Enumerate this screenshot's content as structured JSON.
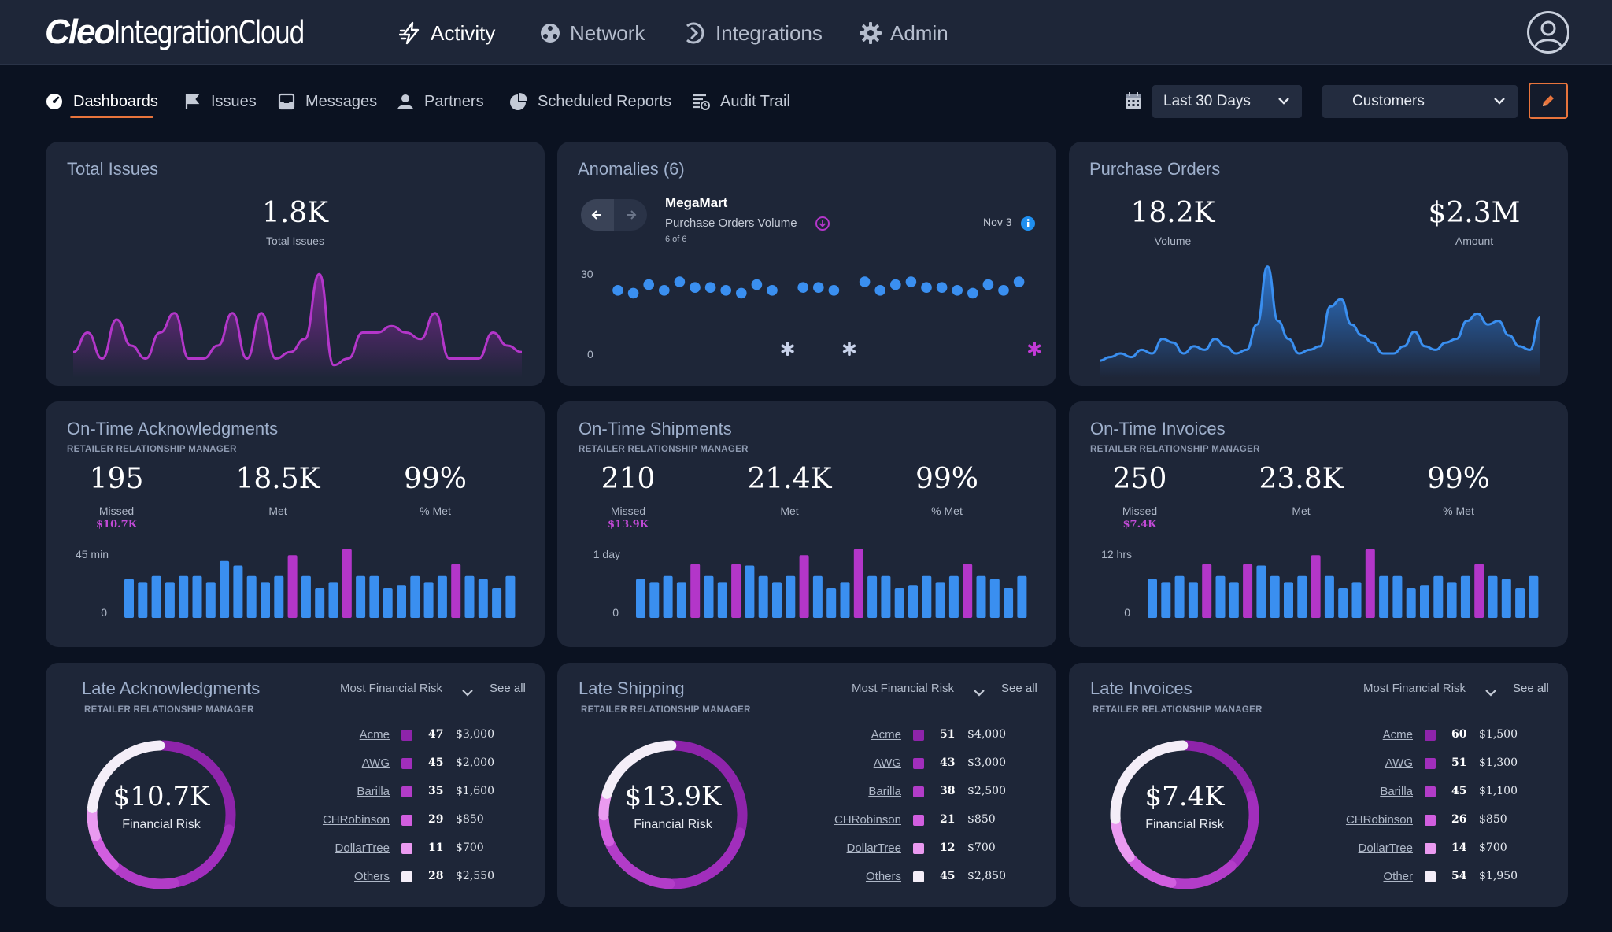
{
  "app": {
    "logo_bold": "Cleo",
    "logo_rest": "IntegrationCloud"
  },
  "main_nav": [
    {
      "label": "Activity",
      "icon": "activity-bolt-icon",
      "active": true
    },
    {
      "label": "Network",
      "icon": "network-icon"
    },
    {
      "label": "Integrations",
      "icon": "integrations-icon"
    },
    {
      "label": "Admin",
      "icon": "gear-icon"
    }
  ],
  "tabs": [
    {
      "label": "Dashboards",
      "icon": "gauge-icon",
      "active": true
    },
    {
      "label": "Issues",
      "icon": "flag-icon"
    },
    {
      "label": "Messages",
      "icon": "inbox-icon"
    },
    {
      "label": "Partners",
      "icon": "partners-icon"
    },
    {
      "label": "Scheduled Reports",
      "icon": "pie-icon"
    },
    {
      "label": "Audit Trail",
      "icon": "audit-icon"
    }
  ],
  "filters": {
    "date_range": "Last 30 Days",
    "entity": "Customers"
  },
  "colors": {
    "accent": "#e8743c",
    "blue": "#3a8ff0",
    "magenta": "#b336c9",
    "bg": "#0b1221",
    "card": "#1e2638"
  },
  "total_issues": {
    "title": "Total Issues",
    "value": "1.8K",
    "label": "Total Issues",
    "chart_data": {
      "type": "area",
      "values": [
        3,
        6,
        2,
        8,
        4,
        2,
        6,
        9,
        2,
        2,
        4,
        9,
        2,
        9,
        2,
        3,
        5,
        15,
        1,
        2,
        6,
        6,
        7,
        6,
        5,
        9,
        2,
        2,
        2,
        6,
        4,
        3
      ]
    }
  },
  "anomalies": {
    "title": "Anomalies (6)",
    "partner": "MegaMart",
    "metric": "Purchase Orders Volume",
    "count": "6 of 6",
    "date": "Nov 3",
    "y_max_label": "30",
    "y_min_label": "0",
    "chart_data": {
      "type": "scatter",
      "points": [
        22,
        21,
        24,
        22,
        25,
        23,
        23,
        22,
        21,
        24,
        22,
        null,
        23,
        23,
        22,
        null,
        25,
        22,
        24,
        25,
        23,
        23,
        22,
        21,
        24,
        22,
        25,
        23
      ],
      "anomaly_indices": [
        11,
        15,
        27
      ]
    }
  },
  "purchase_orders": {
    "title": "Purchase Orders",
    "volume": "18.2K",
    "volume_label": "Volume",
    "amount": "$2.3M",
    "amount_label": "Amount",
    "chart_data": {
      "type": "area",
      "values": [
        3,
        4,
        5,
        4,
        6,
        5,
        9,
        8,
        5,
        7,
        6,
        9,
        7,
        5,
        6,
        13,
        29,
        14,
        9,
        5,
        6,
        7,
        18,
        20,
        13,
        10,
        8,
        5,
        5,
        7,
        11,
        7,
        6,
        8,
        9,
        14,
        16,
        13,
        14,
        10,
        7,
        6,
        15
      ]
    }
  },
  "kpis": [
    {
      "title": "On-Time Acknowledgments",
      "subtitle": "RETAILER RELATIONSHIP MANAGER",
      "missed": "195",
      "missed_label": "Missed",
      "missed_money": "$10.7K",
      "met": "18.5K",
      "met_label": "Met",
      "pct": "99%",
      "pct_label": "% Met",
      "y_max_label": "45 min",
      "y_min_label": "0",
      "chart_data": {
        "type": "bar",
        "values": [
          26,
          24,
          28,
          24,
          28,
          28,
          24,
          38,
          35,
          28,
          24,
          28,
          42,
          28,
          20,
          24,
          46,
          28,
          28,
          20,
          22,
          28,
          24,
          28,
          36,
          28,
          26,
          20,
          28
        ],
        "highlight": [
          12,
          16,
          24
        ]
      }
    },
    {
      "title": "On-Time Shipments",
      "subtitle": "RETAILER RELATIONSHIP MANAGER",
      "missed": "210",
      "missed_label": "Missed",
      "missed_money": "$13.9K",
      "met": "21.4K",
      "met_label": "Met",
      "pct": "99%",
      "pct_label": "% Met",
      "y_max_label": "1 day",
      "y_min_label": "0",
      "chart_data": {
        "type": "bar",
        "values": [
          26,
          24,
          28,
          24,
          36,
          28,
          24,
          36,
          35,
          28,
          24,
          28,
          42,
          28,
          20,
          24,
          46,
          28,
          28,
          20,
          22,
          28,
          24,
          28,
          36,
          28,
          26,
          20,
          28
        ],
        "highlight": [
          4,
          7,
          12,
          16,
          24
        ]
      }
    },
    {
      "title": "On-Time Invoices",
      "subtitle": "RETAILER RELATIONSHIP MANAGER",
      "missed": "250",
      "missed_label": "Missed",
      "missed_money": "$7.4K",
      "met": "23.8K",
      "met_label": "Met",
      "pct": "99%",
      "pct_label": "% Met",
      "y_max_label": "12 hrs",
      "y_min_label": "0",
      "chart_data": {
        "type": "bar",
        "values": [
          26,
          24,
          28,
          24,
          36,
          28,
          24,
          36,
          35,
          28,
          24,
          28,
          42,
          28,
          20,
          24,
          46,
          28,
          28,
          20,
          22,
          28,
          24,
          28,
          36,
          28,
          26,
          20,
          28
        ],
        "highlight": [
          4,
          7,
          12,
          16,
          24
        ]
      }
    }
  ],
  "late": [
    {
      "title": "Late Acknowledgments",
      "subtitle": "RETAILER RELATIONSHIP MANAGER",
      "sort": "Most Financial Risk",
      "see_all": "See all",
      "total": "$10.7K",
      "total_label": "Financial Risk",
      "rows": [
        {
          "name": "Acme",
          "count": "47",
          "amount": "$3,000",
          "color": "#8e24aa"
        },
        {
          "name": "AWG",
          "count": "45",
          "amount": "$2,000",
          "color": "#a12ebc"
        },
        {
          "name": "Barilla",
          "count": "35",
          "amount": "$1,600",
          "color": "#b23cc8"
        },
        {
          "name": "CHRobinson",
          "count": "29",
          "amount": "$850",
          "color": "#d15edf"
        },
        {
          "name": "DollarTree",
          "count": "11",
          "amount": "$700",
          "color": "#ea9af0"
        },
        {
          "name": "Others",
          "count": "28",
          "amount": "$2,550",
          "color": "#f4eef8"
        }
      ]
    },
    {
      "title": "Late Shipping",
      "subtitle": "RETAILER RELATIONSHIP MANAGER",
      "sort": "Most Financial Risk",
      "see_all": "See all",
      "total": "$13.9K",
      "total_label": "Financial Risk",
      "rows": [
        {
          "name": "Acme",
          "count": "51",
          "amount": "$4,000",
          "color": "#8e24aa"
        },
        {
          "name": "AWG",
          "count": "43",
          "amount": "$3,000",
          "color": "#a12ebc"
        },
        {
          "name": "Barilla",
          "count": "38",
          "amount": "$2,500",
          "color": "#b23cc8"
        },
        {
          "name": "CHRobinson",
          "count": "21",
          "amount": "$850",
          "color": "#d15edf"
        },
        {
          "name": "DollarTree",
          "count": "12",
          "amount": "$700",
          "color": "#ea9af0"
        },
        {
          "name": "Others",
          "count": "45",
          "amount": "$2,850",
          "color": "#f4eef8"
        }
      ]
    },
    {
      "title": "Late Invoices",
      "subtitle": "RETAILER RELATIONSHIP MANAGER",
      "sort": "Most Financial Risk",
      "see_all": "See all",
      "total": "$7.4K",
      "total_label": "Financial Risk",
      "rows": [
        {
          "name": "Acme",
          "count": "60",
          "amount": "$1,500",
          "color": "#8e24aa"
        },
        {
          "name": "AWG",
          "count": "51",
          "amount": "$1,300",
          "color": "#a12ebc"
        },
        {
          "name": "Barilla",
          "count": "45",
          "amount": "$1,100",
          "color": "#b23cc8"
        },
        {
          "name": "CHRobinson",
          "count": "26",
          "amount": "$850",
          "color": "#d15edf"
        },
        {
          "name": "DollarTree",
          "count": "14",
          "amount": "$700",
          "color": "#ea9af0"
        },
        {
          "name": "Other",
          "count": "54",
          "amount": "$1,950",
          "color": "#f4eef8"
        }
      ]
    }
  ]
}
